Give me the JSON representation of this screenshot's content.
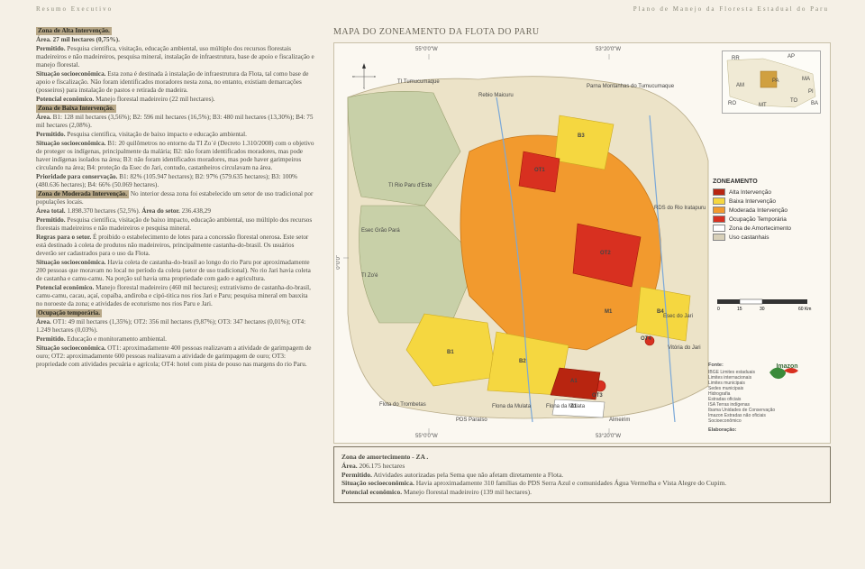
{
  "header": {
    "left": "Resumo Executivo",
    "right": "Plano de Manejo da Floresta Estadual do Paru"
  },
  "map_title": "MAPA DO ZONEAMENTO DA FLOTA DO PARU",
  "text": {
    "s1_h": "Zona de Alta Intervenção.",
    "s1_area": "Área. 27 mil hectares (0,75%).",
    "s1_perm_b": "Permitido.",
    "s1_perm": " Pesquisa científica, visitação, educação ambiental, uso múltiplo dos recursos florestais madeireiros e não madeireiros, pesquisa mineral, instalação de infraestrutura, base de apoio e fiscalização e manejo florestal.",
    "s1_sit_b": "Situação socioeconômica.",
    "s1_sit": " Esta zona é destinada à instalação de infraestrutura da Flota, tal como base de apoio e fiscalização. Não foram identificados moradores nesta zona, no entanto, existiam demarcações (posseiros) para instalação de pastos e retirada de madeira.",
    "s1_pot_b": "Potencial econômico.",
    "s1_pot": " Manejo florestal madeireiro (22 mil hectares).",
    "s2_h": "Zona de Baixa Intervenção.",
    "s2_area_b": "Área.",
    "s2_area": " B1: 128 mil hectares (3,56%); B2: 596 mil hectares (16,5%); B3: 480 mil hectares (13,30%); B4: 75 mil hectares (2,08%).",
    "s2_perm_b": "Permitido.",
    "s2_perm": " Pesquisa científica, visitação de baixo impacto e educação ambiental.",
    "s2_sit_b": "Situação socioeconômica.",
    "s2_sit": " B1: 20 quilômetros no entorno da TI Zo´é (Decreto 1.310/2008) com o objetivo de proteger os indígenas, principalmente da malária; B2: não foram identificados moradores, mas pode haver indígenas isolados na área; B3: não foram identificados moradores, mas pode haver garimpeiros circulando na área; B4: proteção da Esec do Jari, contudo, castanheiros circulavam na área.",
    "s2_pri_b": "Prioridade para conservação.",
    "s2_pri": " B1: 82% (105.947 hectares); B2: 97% (579.635 hectares); B3: 100% (480.636 hectares); B4: 66% (50.069 hectares).",
    "s3_h": "Zona de Moderada Intervenção.",
    "s3_1": " No interior dessa zona foi estabelecido um setor de uso tradicional por populações locais.",
    "s3_area_b": "Área total.",
    "s3_area": " 1.898.370 hectares (52,5%). ",
    "s3_areas_b": "Área do setor.",
    "s3_areas": " 236.438,29",
    "s3_perm_b": "Permitido.",
    "s3_perm": " Pesquisa científica, visitação de baixo impacto, educação ambiental, uso múltiplo dos recursos florestais madeireiros e não madeireiros e pesquisa mineral.",
    "s3_reg_b": "Regras para o setor.",
    "s3_reg": " É proibido o estabelecimento de lotes para a concessão florestal onerosa. Este setor está destinado à coleta de produtos não madeireiros, principalmente castanha-do-brasil. Os usuários deverão ser cadastrados para o uso da Flota.",
    "s3_sit_b": "Situação socioeconômica.",
    "s3_sit": " Havia coleta de castanha-do-brasil ao longo do rio Paru por aproximadamente 200 pessoas que moravam no local no período da coleta (setor de uso tradicional). No rio Jari havia coleta de castanha e camu-camu. Na porção sul havia uma propriedade com gado e agricultura.",
    "s3_pot_b": "Potencial econômico.",
    "s3_pot": " Manejo florestal madeireiro (460 mil hectares); extrativismo de castanha-do-brasil, camu-camu, cacau, açaí, copaíba, andiroba e cipó-titica nos rios Jari e Paru; pesquisa mineral em bauxita no noroeste da zona; e atividades de ecoturismo nos rios Paru e Jari.",
    "s4_h": "Ocupação temporária.",
    "s4_area_b": "Área.",
    "s4_area": " OT1: 49 mil hectares (1,35%); OT2: 356 mil hectares (9,87%); OT3: 347 hectares (0,01%); OT4: 1.249 hectares (0,03%).",
    "s4_perm_b": "Permitido.",
    "s4_perm": " Educação e monitoramento ambiental.",
    "s4_sit_b": "Situação socioeconômica.",
    "s4_sit": " OT1: aproximadamente 400 pessoas realizavam a atividade de garimpagem de ouro; OT2: aproximadamente 600 pessoas realizavam a atividade de garimpagem de ouro; OT3: propriedade com atividades pecuária e agrícola; OT4: hotel com pista de pouso nas margens do rio Paru."
  },
  "buffer": {
    "h": "Zona de amortecimento - ZA .",
    "area_b": "Área.",
    "area": " 206.175 hectares",
    "perm_b": "Permitido.",
    "perm": " Atividades autorizadas pela Sema que não afetam diretamente a Flota.",
    "sit_b": "Situação socioeconômica.",
    "sit": " Havia aproximadamente 310 famílias do PDS Serra Azul e comunidades Água Vermelha e Vista Alegre do Cupim.",
    "pot_b": "Potencial econômico.",
    "pot": " Manejo florestal madeireiro (139 mil hectares)."
  },
  "map": {
    "coords": {
      "top_l": "55°0'0\"W",
      "top_r": "53°20'0\"W",
      "bot_l": "55°0'0\"W",
      "bot_r": "53°20'0\"W",
      "left": "0°0'0\""
    },
    "labels": {
      "tumuc": "TI Tumucumaque",
      "rebio": "Rebio Maicuru",
      "parna": "Parna Montanhas do Tumucumaque",
      "riop": "TI Rio Paru d'Este",
      "esecg": "Esec Grão Pará",
      "tizoe": "TI Zo'é",
      "rdsrio": "RDS do Rio Iratapuru",
      "esecj": "Esec do Jari",
      "vitoria": "Vitória do Jari",
      "almeirim": "Almeirim",
      "flota_t": "Flota do Trombetas",
      "flona_m": "Flona da Mulata",
      "flona_d": "Flona da Mulata",
      "pds": "PDS Paraíso",
      "ot1": "OT1",
      "ot2": "OT2",
      "ot3": "OT3",
      "ot4": "OT4",
      "b1": "B1",
      "b2": "B2",
      "b3": "B3",
      "b4": "B4",
      "m1": "M1",
      "a1": "A1",
      "z1": "Z1"
    },
    "inset": {
      "rr": "RR",
      "am": "AM",
      "pa": "PA",
      "ap": "AP",
      "ma": "MA",
      "to": "TO",
      "pi": "PI",
      "ba": "BA",
      "ro": "RO",
      "mt": "MT"
    },
    "legend": {
      "title": "ZONEAMENTO",
      "items": [
        {
          "label": "Alta Intervenção",
          "color": "#b82510"
        },
        {
          "label": "Baixa Intervenção",
          "color": "#f5d740"
        },
        {
          "label": "Moderada Intervenção",
          "color": "#f29a2e"
        },
        {
          "label": "Ocupação Temporária",
          "color": "#d83020"
        },
        {
          "label": "Zona de Amortecimento",
          "color": "#ffffff"
        },
        {
          "label": "Uso castanhais",
          "color": "#d8d0b8"
        }
      ]
    },
    "scale": {
      "min": "0",
      "mid1": "15",
      "mid2": "30",
      "max": "60 Km"
    },
    "fonte": {
      "title": "Fonte:",
      "lines": [
        "IBGE    Limites estaduais",
        "            Limites internacionais",
        "            Limites municipais",
        "            Sedes municipais",
        "            Hidrografia",
        "            Estradas oficiais",
        "ISA       Terras indígenas",
        "Ibama   Unidades de Conservação",
        "Imazon Estradas não oficiais",
        "            Socioeconômico"
      ],
      "elab": "Elaboração:"
    },
    "logo": "Imazon"
  }
}
